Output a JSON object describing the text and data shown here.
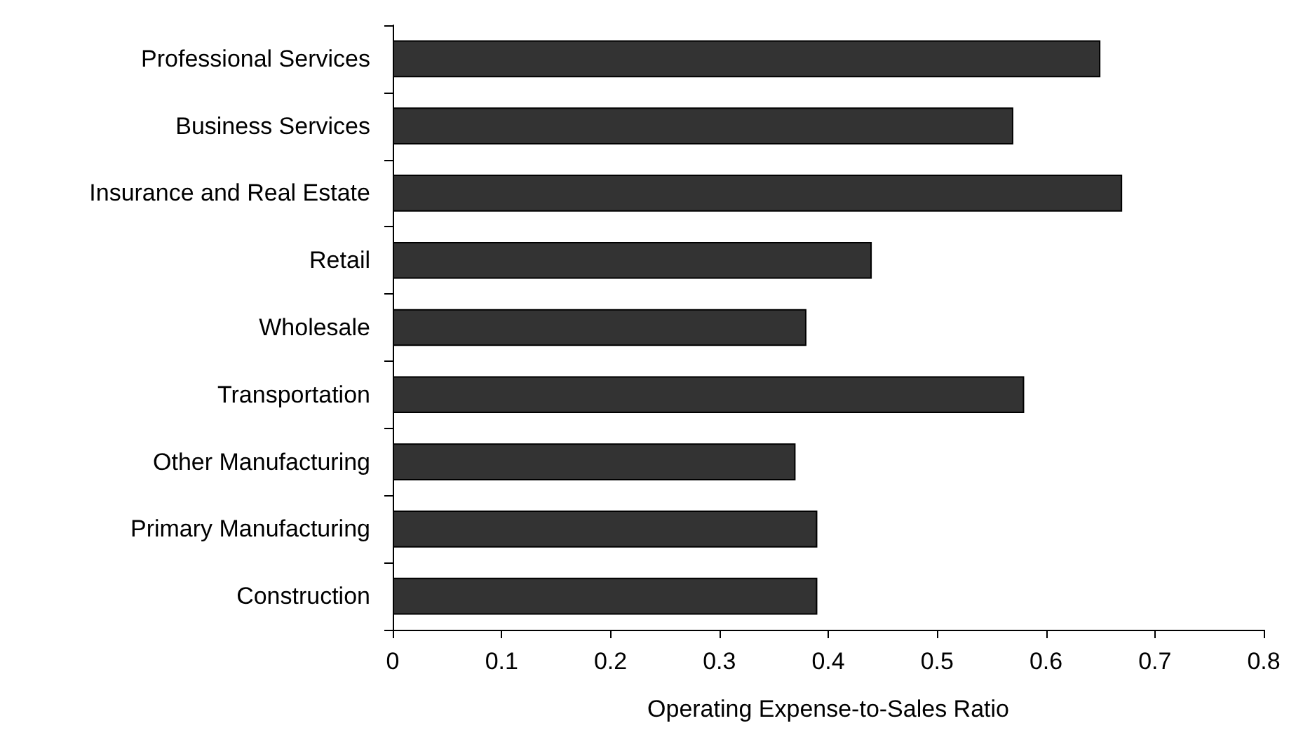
{
  "chart_data": {
    "type": "bar",
    "orientation": "horizontal",
    "xlabel": "Operating Expense-to-Sales Ratio",
    "categories": [
      "Professional Services",
      "Business Services",
      "Insurance and Real Estate",
      "Retail",
      "Wholesale",
      "Transportation",
      "Other Manufacturing",
      "Primary Manufacturing",
      "Construction"
    ],
    "values": [
      0.65,
      0.57,
      0.67,
      0.44,
      0.38,
      0.58,
      0.37,
      0.39,
      0.39
    ],
    "color": "#333333",
    "xlim": [
      0,
      0.8
    ],
    "xticks": [
      0,
      0.1,
      0.2,
      0.3,
      0.4,
      0.5,
      0.6,
      0.7,
      0.8
    ],
    "grid": false
  }
}
